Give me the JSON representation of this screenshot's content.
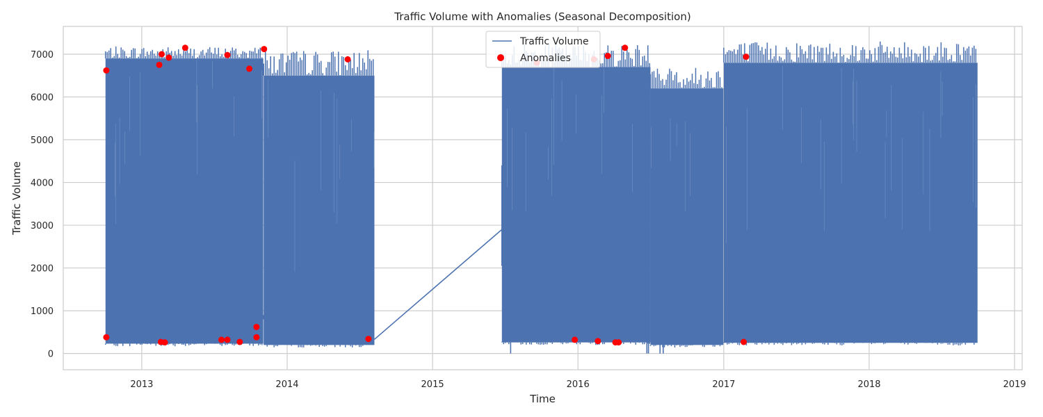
{
  "chart_data": {
    "type": "line",
    "title": "Traffic Volume with Anomalies (Seasonal Decomposition)",
    "xlabel": "Time",
    "ylabel": "Traffic Volume",
    "x_ticks": [
      "2013",
      "2014",
      "2015",
      "2016",
      "2017",
      "2018",
      "2019"
    ],
    "y_ticks": [
      0,
      1000,
      2000,
      3000,
      4000,
      5000,
      6000,
      7000
    ],
    "xlim": [
      "2012-06-18",
      "2019-01-20"
    ],
    "ylim": [
      -380,
      7650
    ],
    "grid": true,
    "legend_position": "top-center",
    "colors": {
      "line": "#4c72b0",
      "anomaly": "#ff0000",
      "grid": "#cccccc",
      "frame": "#cccccc"
    },
    "series": [
      {
        "name": "Traffic Volume",
        "segments": [
          {
            "start": "2012-10-02",
            "end": "2013-11-02",
            "min": 230,
            "max": 6900,
            "peak": 7180
          },
          {
            "start": "2013-11-03",
            "end": "2014-08-08",
            "min": 200,
            "max": 6500,
            "peak": 7100
          },
          {
            "start": "2015-06-24",
            "end": "2016-07-01",
            "min": 260,
            "max": 6700,
            "peak": 7250
          },
          {
            "start": "2016-07-01",
            "end": "2016-12-31",
            "min": 200,
            "max": 6200,
            "peak": 6700
          },
          {
            "start": "2017-01-01",
            "end": "2018-09-30",
            "min": 250,
            "max": 6800,
            "peak": 7300
          }
        ],
        "bridges": [
          {
            "from": [
              "2013-11-02",
              800
            ],
            "to": [
              "2013-11-03",
              900
            ]
          },
          {
            "from": [
              "2014-08-08",
              330
            ],
            "to": [
              "2015-06-24",
              2900
            ]
          }
        ],
        "spikes": [
          {
            "date": "2015-06-24",
            "low": 2050,
            "high": 4400
          },
          {
            "date": "2015-06-26",
            "low": 2500,
            "high": 4700
          },
          {
            "date": "2016-06-22",
            "low": 0,
            "high": 400
          },
          {
            "date": "2016-06-26",
            "low": 0,
            "high": 300
          },
          {
            "date": "2016-07-25",
            "low": 0,
            "high": 250
          },
          {
            "date": "2016-08-02",
            "low": 0,
            "high": 300
          },
          {
            "date": "2015-07-16",
            "low": 0,
            "high": 400
          }
        ]
      },
      {
        "name": "Anomalies",
        "points": [
          {
            "x": "2012-10-04",
            "y": 6620
          },
          {
            "x": "2012-10-04",
            "y": 380
          },
          {
            "x": "2013-02-14",
            "y": 6750
          },
          {
            "x": "2013-02-20",
            "y": 7000
          },
          {
            "x": "2013-02-18",
            "y": 270
          },
          {
            "x": "2013-02-28",
            "y": 260
          },
          {
            "x": "2013-03-10",
            "y": 6920
          },
          {
            "x": "2013-04-20",
            "y": 7150
          },
          {
            "x": "2013-07-20",
            "y": 320
          },
          {
            "x": "2013-08-04",
            "y": 320
          },
          {
            "x": "2013-08-04",
            "y": 6980
          },
          {
            "x": "2013-09-04",
            "y": 270
          },
          {
            "x": "2013-09-28",
            "y": 6660
          },
          {
            "x": "2013-10-16",
            "y": 380
          },
          {
            "x": "2013-10-16",
            "y": 620
          },
          {
            "x": "2013-11-04",
            "y": 7120
          },
          {
            "x": "2014-06-02",
            "y": 6880
          },
          {
            "x": "2014-07-24",
            "y": 340
          },
          {
            "x": "2015-09-20",
            "y": 6800
          },
          {
            "x": "2015-12-24",
            "y": 320
          },
          {
            "x": "2016-02-10",
            "y": 6880
          },
          {
            "x": "2016-02-20",
            "y": 290
          },
          {
            "x": "2016-03-16",
            "y": 6960
          },
          {
            "x": "2016-04-04",
            "y": 260
          },
          {
            "x": "2016-04-12",
            "y": 260
          },
          {
            "x": "2016-04-28",
            "y": 7150
          },
          {
            "x": "2017-02-20",
            "y": 270
          },
          {
            "x": "2017-02-26",
            "y": 6940
          }
        ]
      }
    ]
  }
}
